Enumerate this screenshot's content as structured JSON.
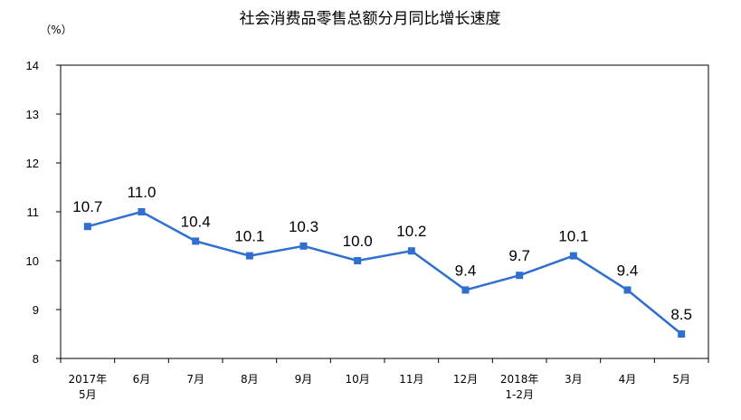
{
  "chart_data": {
    "type": "line",
    "title": "社会消费品零售总额分月同比增长速度",
    "unit_label": "（%）",
    "categories": [
      [
        "2017年",
        "5月"
      ],
      [
        "6月"
      ],
      [
        "7月"
      ],
      [
        "8月"
      ],
      [
        "9月"
      ],
      [
        "10月"
      ],
      [
        "11月"
      ],
      [
        "12月"
      ],
      [
        "2018年",
        "1-2月"
      ],
      [
        "3月"
      ],
      [
        "4月"
      ],
      [
        "5月"
      ]
    ],
    "values": [
      10.7,
      11.0,
      10.4,
      10.1,
      10.3,
      10.0,
      10.2,
      9.4,
      9.7,
      10.1,
      9.4,
      8.5
    ],
    "data_labels": [
      "10.7",
      "11.0",
      "10.4",
      "10.1",
      "10.3",
      "10.0",
      "10.2",
      "9.4",
      "9.7",
      "10.1",
      "9.4",
      "8.5"
    ],
    "ylim": [
      8,
      14
    ],
    "yticks": [
      "8",
      "9",
      "10",
      "11",
      "12",
      "13",
      "14"
    ],
    "grid": false,
    "legend": "none",
    "colors": {
      "line": "#2f6fd0",
      "marker": "#2f6fd0",
      "axis": "#000000"
    }
  }
}
